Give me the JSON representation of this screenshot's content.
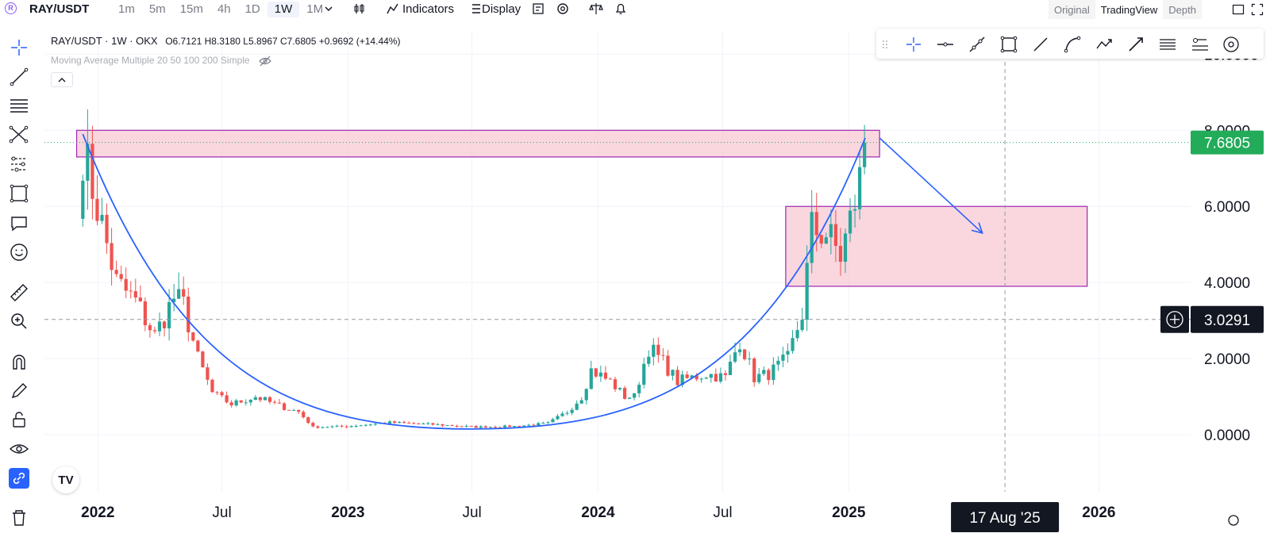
{
  "topbar": {
    "symbol": "RAY/USDT",
    "intervals": [
      "1m",
      "5m",
      "15m",
      "4h",
      "1D",
      "1W",
      "1M"
    ],
    "active_interval": "1W",
    "indicators_label": "Indicators",
    "display_label": "Display",
    "view_tabs": [
      "Original",
      "TradingView",
      "Depth"
    ],
    "active_view": "TradingView"
  },
  "legend": {
    "title": "RAY/USDT · 1W · OKX",
    "ohlc": "O6.7121  H8.3180  L5.8967  C7.6805  +0.9692 (+14.44%)",
    "indicator": "Moving Average Multiple 20 50 100 200 Simple"
  },
  "chart_data": {
    "type": "candlestick",
    "title": "RAY/USDT · 1W · OKX",
    "y_ticks": [
      "10.0000",
      "8.0000",
      "6.0000",
      "4.0000",
      "2.0000",
      "0.0000"
    ],
    "y_tick_values": [
      10,
      8,
      6,
      4,
      2,
      0
    ],
    "ylim": [
      -1.5,
      10.8
    ],
    "x_ticks": [
      "2022",
      "Jul",
      "2023",
      "Jul",
      "2024",
      "Jul",
      "2025",
      "2026"
    ],
    "x_tick_values": [
      "2022-01-01",
      "2022-07-01",
      "2023-01-01",
      "2023-07-01",
      "2024-01-01",
      "2024-07-01",
      "2025-01-01",
      "2026-01-01"
    ],
    "x_range": [
      "2021-10-15",
      "2026-05-15"
    ],
    "grid": true,
    "last_price": "7.6805",
    "last_price_value": 7.6805,
    "crosshair_price": "3.0291",
    "crosshair_price_value": 3.0291,
    "crosshair_date": "17 Aug '25",
    "crosshair_date_value": "2025-08-17",
    "colors": {
      "up": "#26a69a",
      "down": "#ef5350",
      "zone_fill": "#f8c8d4",
      "zone_border": "#9c27b0",
      "curve": "#2962ff",
      "last_price_bg": "#22ab59"
    },
    "zones": [
      {
        "x_start": "2021-12-01",
        "x_end": "2025-02-15",
        "y_top": 8.0,
        "y_bottom": 7.3
      },
      {
        "x_start": "2024-10-01",
        "x_end": "2025-12-15",
        "y_top": 6.0,
        "y_bottom": 3.9
      }
    ],
    "curve": {
      "start": [
        "2021-12-10",
        7.9
      ],
      "bottom": [
        "2023-07-01",
        0.15
      ],
      "end": [
        "2025-01-25",
        7.8
      ]
    },
    "arrow": {
      "from": [
        "2025-02-15",
        7.8
      ],
      "to": [
        "2025-07-15",
        5.3
      ]
    },
    "anchors": [
      [
        "2021-12-10",
        7.5
      ],
      [
        "2022-01-07",
        5.5
      ],
      [
        "2022-01-28",
        4.0
      ],
      [
        "2022-02-25",
        3.5
      ],
      [
        "2022-03-25",
        2.6
      ],
      [
        "2022-04-22",
        3.6
      ],
      [
        "2022-05-06",
        3.4
      ],
      [
        "2022-05-27",
        2.0
      ],
      [
        "2022-06-17",
        1.1
      ],
      [
        "2022-07-15",
        0.8
      ],
      [
        "2022-08-19",
        1.0
      ],
      [
        "2022-09-16",
        0.8
      ],
      [
        "2022-10-21",
        0.6
      ],
      [
        "2022-11-11",
        0.2
      ],
      [
        "2022-12-30",
        0.22
      ],
      [
        "2023-03-03",
        0.32
      ],
      [
        "2023-05-05",
        0.27
      ],
      [
        "2023-07-07",
        0.2
      ],
      [
        "2023-09-01",
        0.22
      ],
      [
        "2023-10-20",
        0.3
      ],
      [
        "2023-11-17",
        0.6
      ],
      [
        "2023-12-08",
        1.0
      ],
      [
        "2023-12-22",
        1.7
      ],
      [
        "2024-01-19",
        1.4
      ],
      [
        "2024-02-09",
        1.0
      ],
      [
        "2024-02-23",
        1.0
      ],
      [
        "2024-03-15",
        2.3
      ],
      [
        "2024-04-05",
        1.9
      ],
      [
        "2024-04-26",
        1.4
      ],
      [
        "2024-06-07",
        1.6
      ],
      [
        "2024-07-05",
        1.5
      ],
      [
        "2024-07-26",
        2.5
      ],
      [
        "2024-08-16",
        1.5
      ],
      [
        "2024-09-06",
        1.6
      ],
      [
        "2024-10-04",
        2.0
      ],
      [
        "2024-10-25",
        3.2
      ],
      [
        "2024-11-08",
        5.4
      ],
      [
        "2024-11-29",
        5.3
      ],
      [
        "2024-12-20",
        4.7
      ],
      [
        "2025-01-03",
        5.6
      ],
      [
        "2025-01-17",
        6.7
      ],
      [
        "2025-01-24",
        7.7
      ]
    ]
  }
}
